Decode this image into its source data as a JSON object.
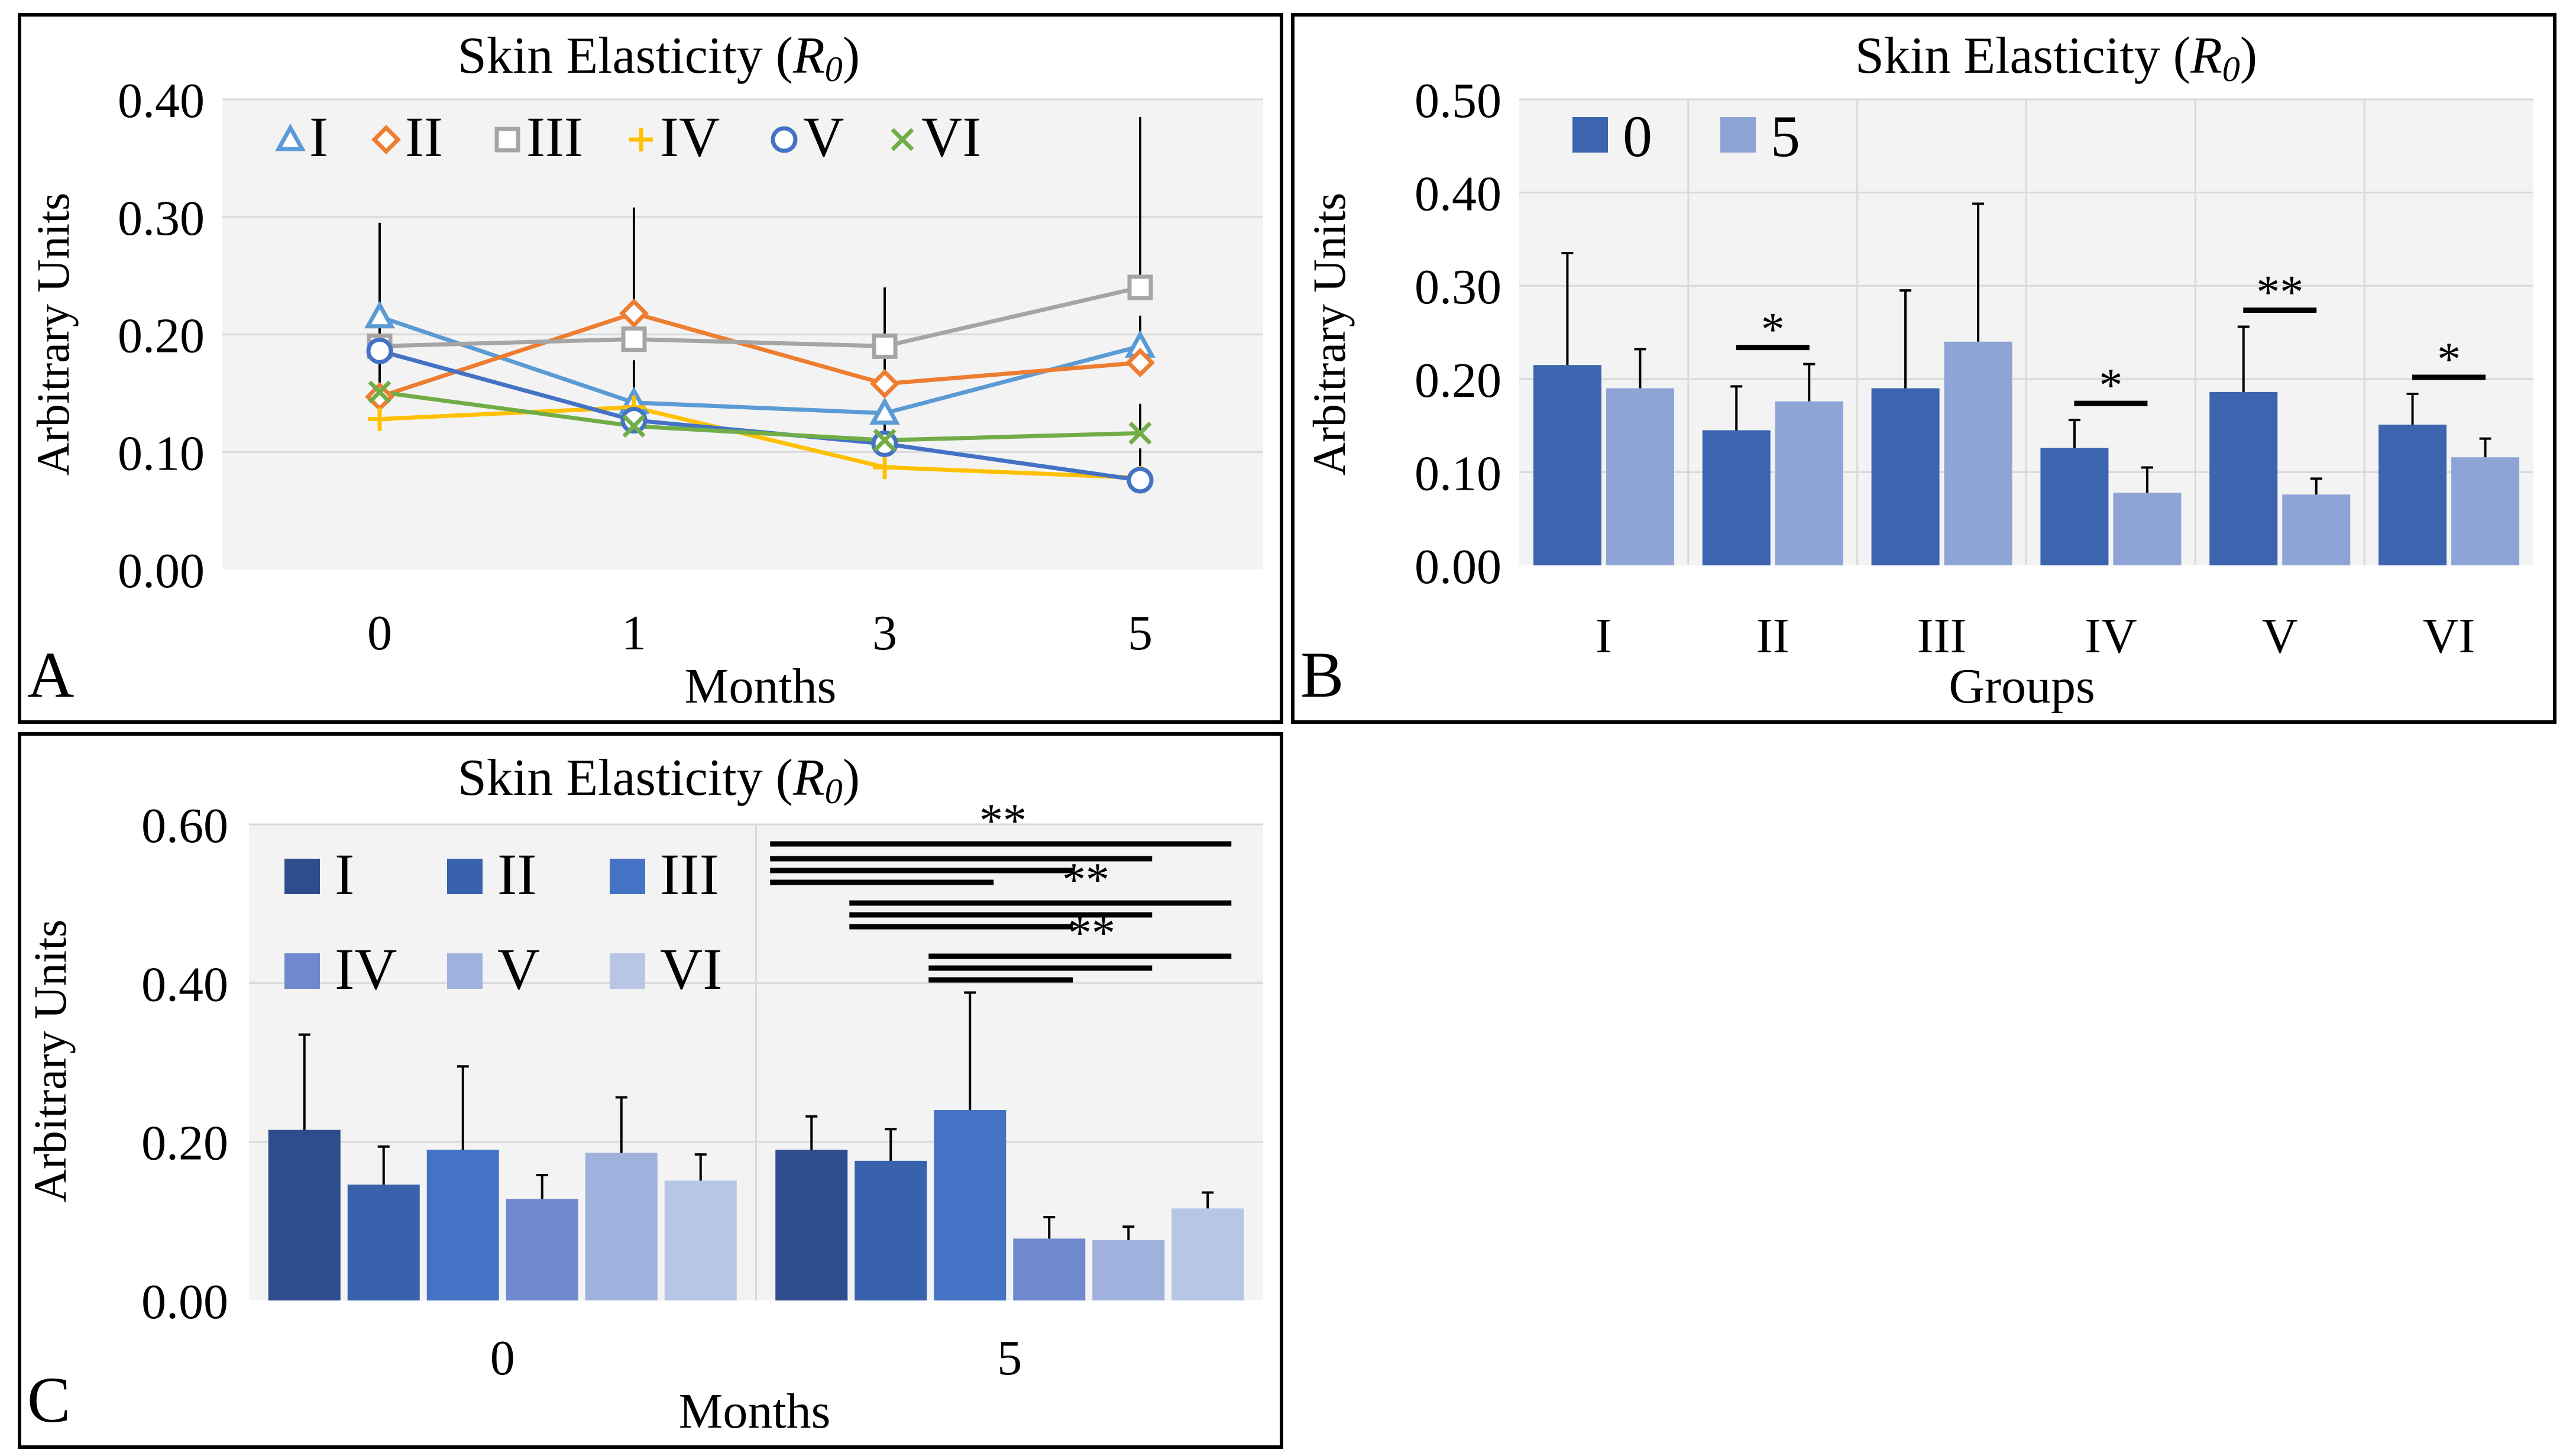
{
  "chart_data": [
    {
      "panel_letter": "A",
      "type": "line",
      "title_main": "Skin Elasticity (",
      "title_var": "R",
      "title_sub": "0",
      "title_close": ")",
      "xlabel": "Months",
      "ylabel": "Arbitrary Units",
      "x": [
        "0",
        "1",
        "3",
        "5"
      ],
      "ylim": [
        0,
        0.4
      ],
      "yticks": [
        "0.00",
        "0.10",
        "0.20",
        "0.30",
        "0.40"
      ],
      "legend_position": "top",
      "series": [
        {
          "name": "I",
          "marker": "triangle",
          "color": "#5B9BD5",
          "values": [
            0.215,
            0.142,
            0.133,
            0.19
          ],
          "err": [
            0.0,
            0.0,
            0.0,
            0.0
          ]
        },
        {
          "name": "II",
          "marker": "diamond",
          "color": "#ED7D31",
          "values": [
            0.147,
            0.218,
            0.158,
            0.176
          ],
          "err": [
            0.045,
            0.09,
            0.082,
            0.04
          ]
        },
        {
          "name": "III",
          "marker": "square",
          "color": "#A5A5A5",
          "values": [
            0.19,
            0.196,
            0.19,
            0.24
          ],
          "err": [
            0.105,
            0.11,
            0.05,
            0.145
          ]
        },
        {
          "name": "IV",
          "marker": "plus",
          "color": "#FFC000",
          "values": [
            0.128,
            0.138,
            0.087,
            0.078
          ],
          "err": [
            0.03,
            0.04,
            0.015,
            0.025
          ]
        },
        {
          "name": "V",
          "marker": "circle",
          "color": "#4472C4",
          "values": [
            0.186,
            0.127,
            0.107,
            0.076
          ],
          "err": [
            0.07,
            0.03,
            0.032,
            0.02
          ]
        },
        {
          "name": "VI",
          "marker": "x",
          "color": "#70AD47",
          "values": [
            0.151,
            0.122,
            0.11,
            0.116
          ],
          "err": [
            0.035,
            0.02,
            0.02,
            0.025
          ]
        }
      ]
    },
    {
      "panel_letter": "B",
      "type": "bar",
      "title_main": "Skin Elasticity (",
      "title_var": "R",
      "title_sub": "0",
      "title_close": ")",
      "xlabel": "Groups",
      "ylabel": "Arbitrary Units",
      "categories": [
        "I",
        "II",
        "III",
        "IV",
        "V",
        "VI"
      ],
      "ylim": [
        0,
        0.5
      ],
      "yticks": [
        "0.00",
        "0.10",
        "0.20",
        "0.30",
        "0.40",
        "0.50"
      ],
      "legend_position": "top-left",
      "series": [
        {
          "name": "0",
          "color": "#3D64AE",
          "values": [
            0.215,
            0.145,
            0.19,
            0.126,
            0.186,
            0.151
          ],
          "err": [
            0.12,
            0.047,
            0.105,
            0.03,
            0.07,
            0.033
          ]
        },
        {
          "name": "5",
          "color": "#8FA4D6",
          "values": [
            0.19,
            0.176,
            0.24,
            0.078,
            0.076,
            0.116
          ],
          "err": [
            0.042,
            0.04,
            0.148,
            0.027,
            0.017,
            0.02
          ]
        }
      ],
      "annotations": [
        {
          "category": "II",
          "label": "*"
        },
        {
          "category": "IV",
          "label": "*"
        },
        {
          "category": "V",
          "label": "**"
        },
        {
          "category": "VI",
          "label": "*"
        }
      ]
    },
    {
      "panel_letter": "C",
      "type": "bar",
      "title_main": "Skin Elasticity (",
      "title_var": "R",
      "title_sub": "0",
      "title_close": ")",
      "xlabel": "Months",
      "ylabel": "Arbitrary Units",
      "categories": [
        "0",
        "5"
      ],
      "ylim": [
        0,
        0.6
      ],
      "yticks": [
        "0.00",
        "0.20",
        "0.40",
        "0.60"
      ],
      "legend_position": "top-left",
      "series": [
        {
          "name": "I",
          "color": "#2E4D8C",
          "values": [
            0.215,
            0.19
          ],
          "err": [
            0.12,
            0.042
          ]
        },
        {
          "name": "II",
          "color": "#3862AC",
          "values": [
            0.146,
            0.176
          ],
          "err": [
            0.048,
            0.04
          ]
        },
        {
          "name": "III",
          "color": "#4472C4",
          "values": [
            0.19,
            0.24
          ],
          "err": [
            0.105,
            0.148
          ]
        },
        {
          "name": "IV",
          "color": "#6F89CE",
          "values": [
            0.128,
            0.078
          ],
          "err": [
            0.03,
            0.027
          ]
        },
        {
          "name": "V",
          "color": "#A0B1DD",
          "values": [
            0.186,
            0.076
          ],
          "err": [
            0.07,
            0.017
          ]
        },
        {
          "name": "VI",
          "color": "#B8C6E6",
          "values": [
            0.151,
            0.116
          ],
          "err": [
            0.033,
            0.02
          ]
        }
      ],
      "annotations": [
        "**",
        "**",
        "**"
      ]
    }
  ]
}
